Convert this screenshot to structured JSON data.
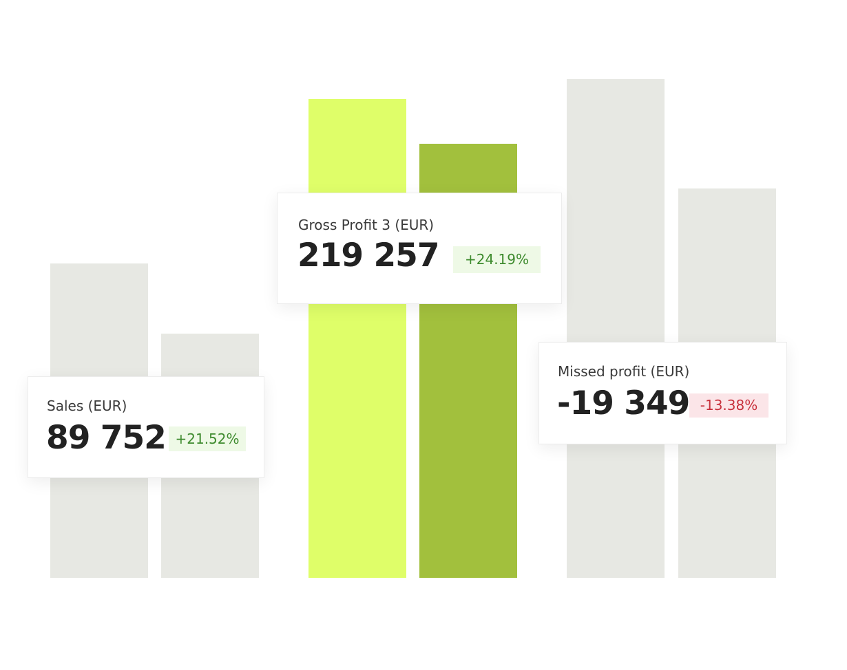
{
  "chart_data": {
    "type": "bar",
    "bars": [
      {
        "value": 0.63,
        "color": "#e7e8e3"
      },
      {
        "value": 0.49,
        "color": "#e7e8e3"
      },
      {
        "value": 0.96,
        "color": "#dffe69"
      },
      {
        "value": 0.87,
        "color": "#a2c03d"
      },
      {
        "value": 1.0,
        "color": "#e7e8e3"
      },
      {
        "value": 0.78,
        "color": "#e7e8e3"
      }
    ]
  },
  "cards": {
    "sales": {
      "label": "Sales (EUR)",
      "value": "89 752",
      "change": "+21.52%",
      "change_color": "#3d8a2d",
      "change_bg": "#eef9e6"
    },
    "gross_profit": {
      "label": "Gross Profit 3 (EUR)",
      "value": "219 257",
      "change": "+24.19%",
      "change_color": "#3d8a2d",
      "change_bg": "#eef9e6"
    },
    "missed_profit": {
      "label": "Missed profit (EUR)",
      "value": "-19 349",
      "change": "-13.38%",
      "change_color": "#c8313c",
      "change_bg": "#fbe5e8"
    }
  }
}
